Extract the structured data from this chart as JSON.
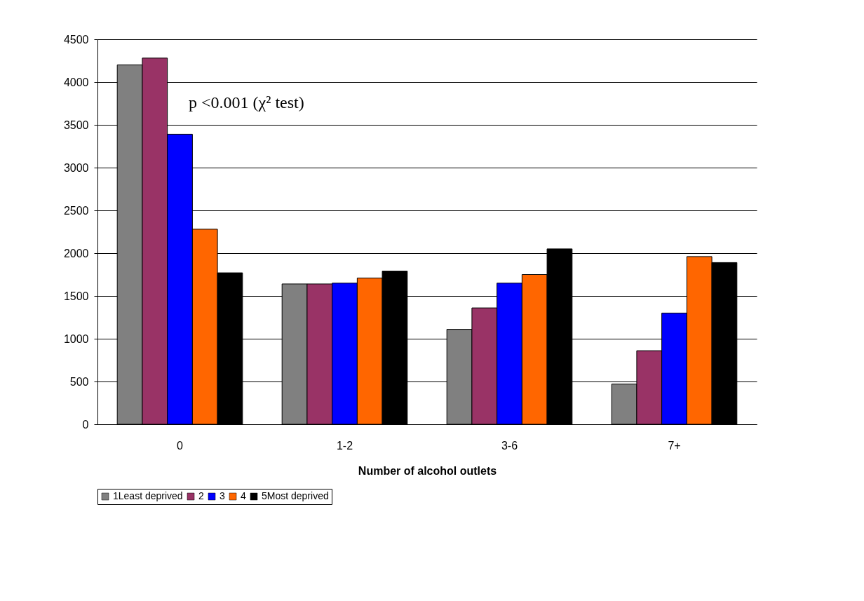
{
  "chart_data": {
    "type": "bar",
    "xlabel": "Number of alcohol outlets",
    "categories": [
      "0",
      "1-2",
      "3-6",
      "7+"
    ],
    "series": [
      {
        "name": "1Least deprived",
        "color": "#808080",
        "values": [
          4200,
          1640,
          1110,
          470
        ]
      },
      {
        "name": "2",
        "color": "#993366",
        "values": [
          4280,
          1640,
          1360,
          860
        ]
      },
      {
        "name": "3",
        "color": "#0000ff",
        "values": [
          3390,
          1650,
          1650,
          1300
        ]
      },
      {
        "name": "4",
        "color": "#ff6600",
        "values": [
          2280,
          1710,
          1750,
          1960
        ]
      },
      {
        "name": "5Most deprived",
        "color": "#000000",
        "values": [
          1770,
          1790,
          2050,
          1890
        ]
      }
    ],
    "ylim": [
      0,
      4500
    ],
    "yticks": [
      0,
      500,
      1000,
      1500,
      2000,
      2500,
      3000,
      3500,
      4000,
      4500
    ],
    "grid": "y",
    "legend": "bottom",
    "annotations": [
      "p <0.001 (χ² test)"
    ]
  }
}
